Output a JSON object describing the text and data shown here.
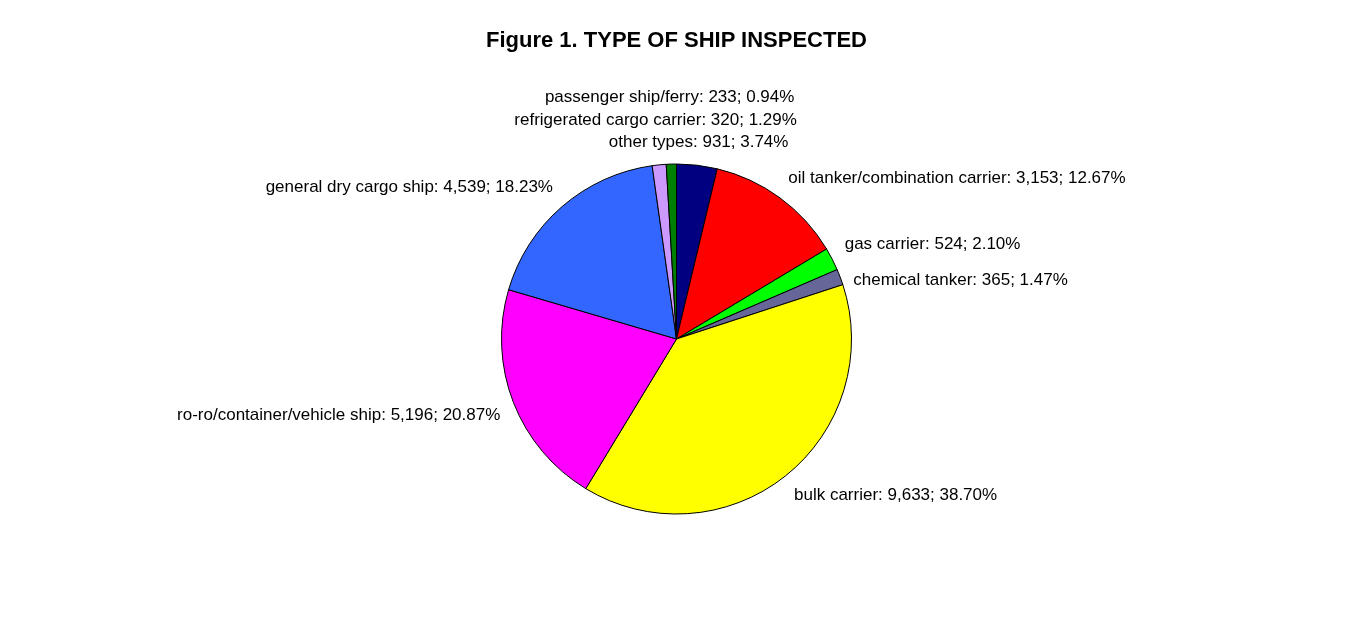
{
  "chart_data": {
    "type": "pie",
    "title": "Figure 1. TYPE OF SHIP INSPECTED",
    "categories": [
      "other types",
      "oil tanker/combination carrier",
      "gas carrier",
      "chemical tanker",
      "bulk carrier",
      "ro-ro/container/vehicle ship",
      "general dry cargo ship",
      "refrigerated cargo carrier",
      "passenger ship/ferry"
    ],
    "values": [
      931,
      3153,
      524,
      365,
      9633,
      5196,
      4539,
      320,
      233
    ],
    "value_labels": [
      "931; 3.74%",
      "3,153; 12.67%",
      "524; 2.10%",
      "365; 1.47%",
      "9,633; 38.70%",
      "5,196; 20.87%",
      "4,539; 18.23%",
      "320; 1.29%",
      "233; 0.94%"
    ],
    "colors": [
      "#000080",
      "#ff0000",
      "#00ff00",
      "#666699",
      "#ffff00",
      "#ff00ff",
      "#3366ff",
      "#cc99ff",
      "#008000"
    ],
    "legend": false
  }
}
